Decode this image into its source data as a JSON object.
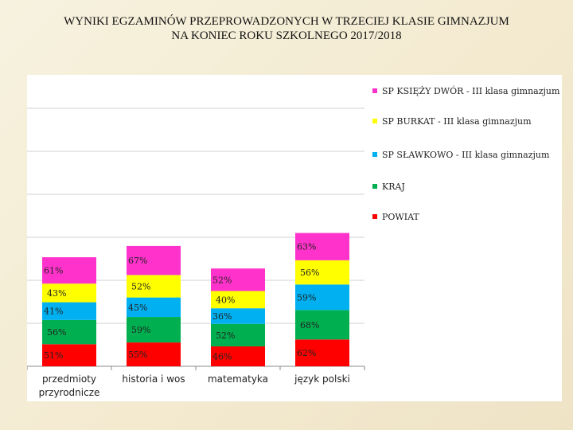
{
  "title_lines": [
    "WYNIKI EGZAMINÓW PRZEPROWADZONYCH W TRZECIEJ KLASIE GIMNAZJUM",
    "NA KONIEC ROKU SZKOLNEGO 2017/2018"
  ],
  "chart_data": {
    "type": "bar",
    "stacked": true,
    "categories": [
      "przedmioty przyrodnicze",
      "historia i wos",
      "matematyka",
      "język polski"
    ],
    "category_label_lines": [
      [
        "przedmioty",
        "przyrodnicze"
      ],
      [
        "historia i wos"
      ],
      [
        "matematyka"
      ],
      [
        "język polski"
      ]
    ],
    "series": [
      {
        "name": "POWIAT",
        "color": "#ff0000",
        "values": [
          51,
          55,
          46,
          62
        ]
      },
      {
        "name": "KRAJ",
        "color": "#00b050",
        "values": [
          56,
          59,
          52,
          68
        ]
      },
      {
        "name": "SP SŁAWKOWO - III klasa gimnazjum",
        "color": "#00b0f0",
        "values": [
          41,
          45,
          36,
          59
        ]
      },
      {
        "name": "SP BURKAT - III klasa gimnazjum",
        "color": "#ffff00",
        "values": [
          43,
          52,
          40,
          56
        ]
      },
      {
        "name": "SP KSIĘŻY DWÓR - III klasa gimnazjum",
        "color": "#ff33cc",
        "values": [
          61,
          67,
          52,
          63
        ]
      }
    ],
    "value_suffix": "%",
    "legend_position": "right",
    "legend_order": [
      "SP KSIĘŻY DWÓR - III klasa gimnazjum",
      "SP BURKAT - III klasa gimnazjum",
      "SP SŁAWKOWO - III klasa gimnazjum",
      "KRAJ",
      "POWIAT"
    ],
    "grid": true,
    "y_axis_labels": false
  }
}
